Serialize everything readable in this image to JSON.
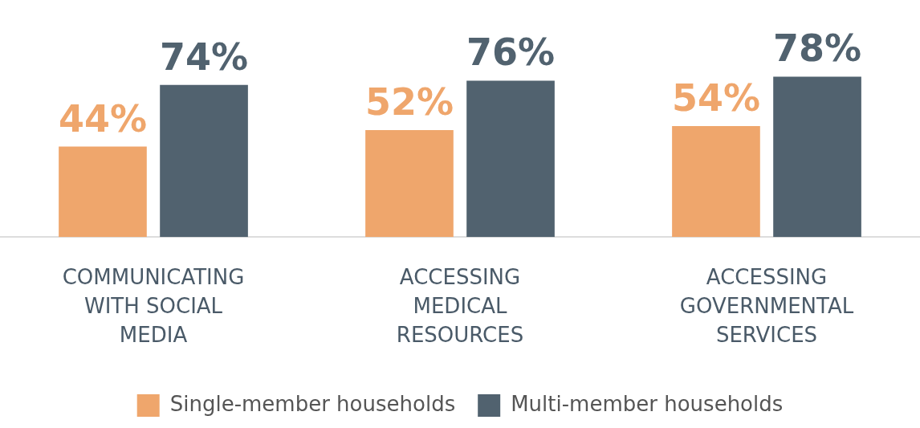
{
  "chart_data": {
    "type": "bar",
    "categories": [
      "COMMUNICATING WITH SOCIAL MEDIA",
      "ACCESSING MEDICAL RESOURCES",
      "ACCESSING GOVERNMENTAL SERVICES"
    ],
    "series": [
      {
        "name": "Single-member households",
        "color": "#efa66c",
        "values": [
          44,
          52,
          54
        ],
        "value_labels": [
          "44%",
          "52%",
          "54%"
        ]
      },
      {
        "name": "Multi-member households",
        "color": "#51626f",
        "values": [
          74,
          76,
          78
        ],
        "value_labels": [
          "74%",
          "76%",
          "78%"
        ]
      }
    ],
    "ylim": [
      0,
      100
    ],
    "grid": false,
    "legend": "bottom",
    "data_labels": true,
    "tick_labels": "x"
  }
}
